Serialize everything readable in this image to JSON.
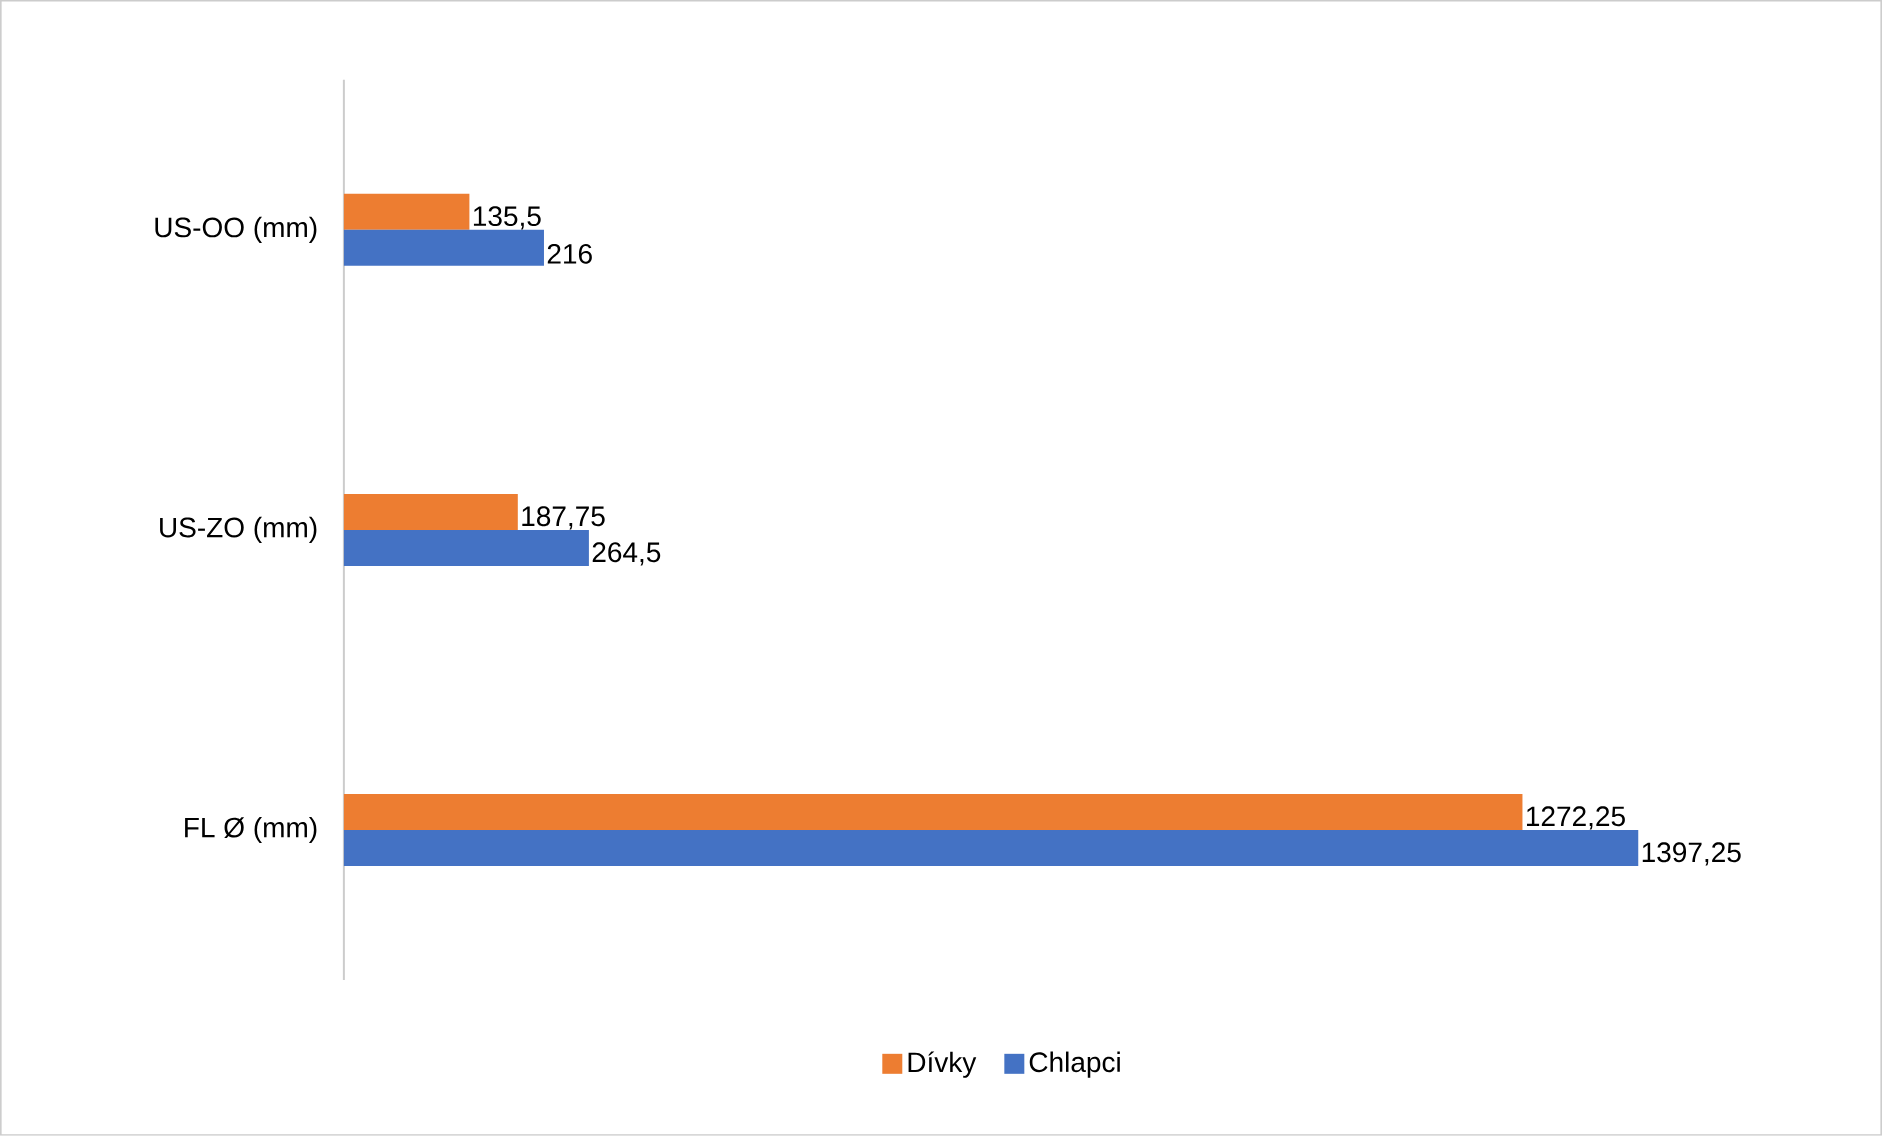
{
  "chart_data": {
    "type": "bar",
    "orientation": "horizontal",
    "categories": [
      "US-OO (mm)",
      "US-ZO (mm)",
      "FL Ø (mm)"
    ],
    "series": [
      {
        "name": "Dívky",
        "color": "#ed7d31",
        "values": [
          135.5,
          187.75,
          1272.25
        ],
        "value_labels": [
          "135,5",
          "187,75",
          "1272,25"
        ]
      },
      {
        "name": "Chlapci",
        "color": "#4472c4",
        "values": [
          216,
          264.5,
          1397.25
        ],
        "value_labels": [
          "216",
          "264,5",
          "1397,25"
        ]
      }
    ],
    "legend": "bottom"
  }
}
